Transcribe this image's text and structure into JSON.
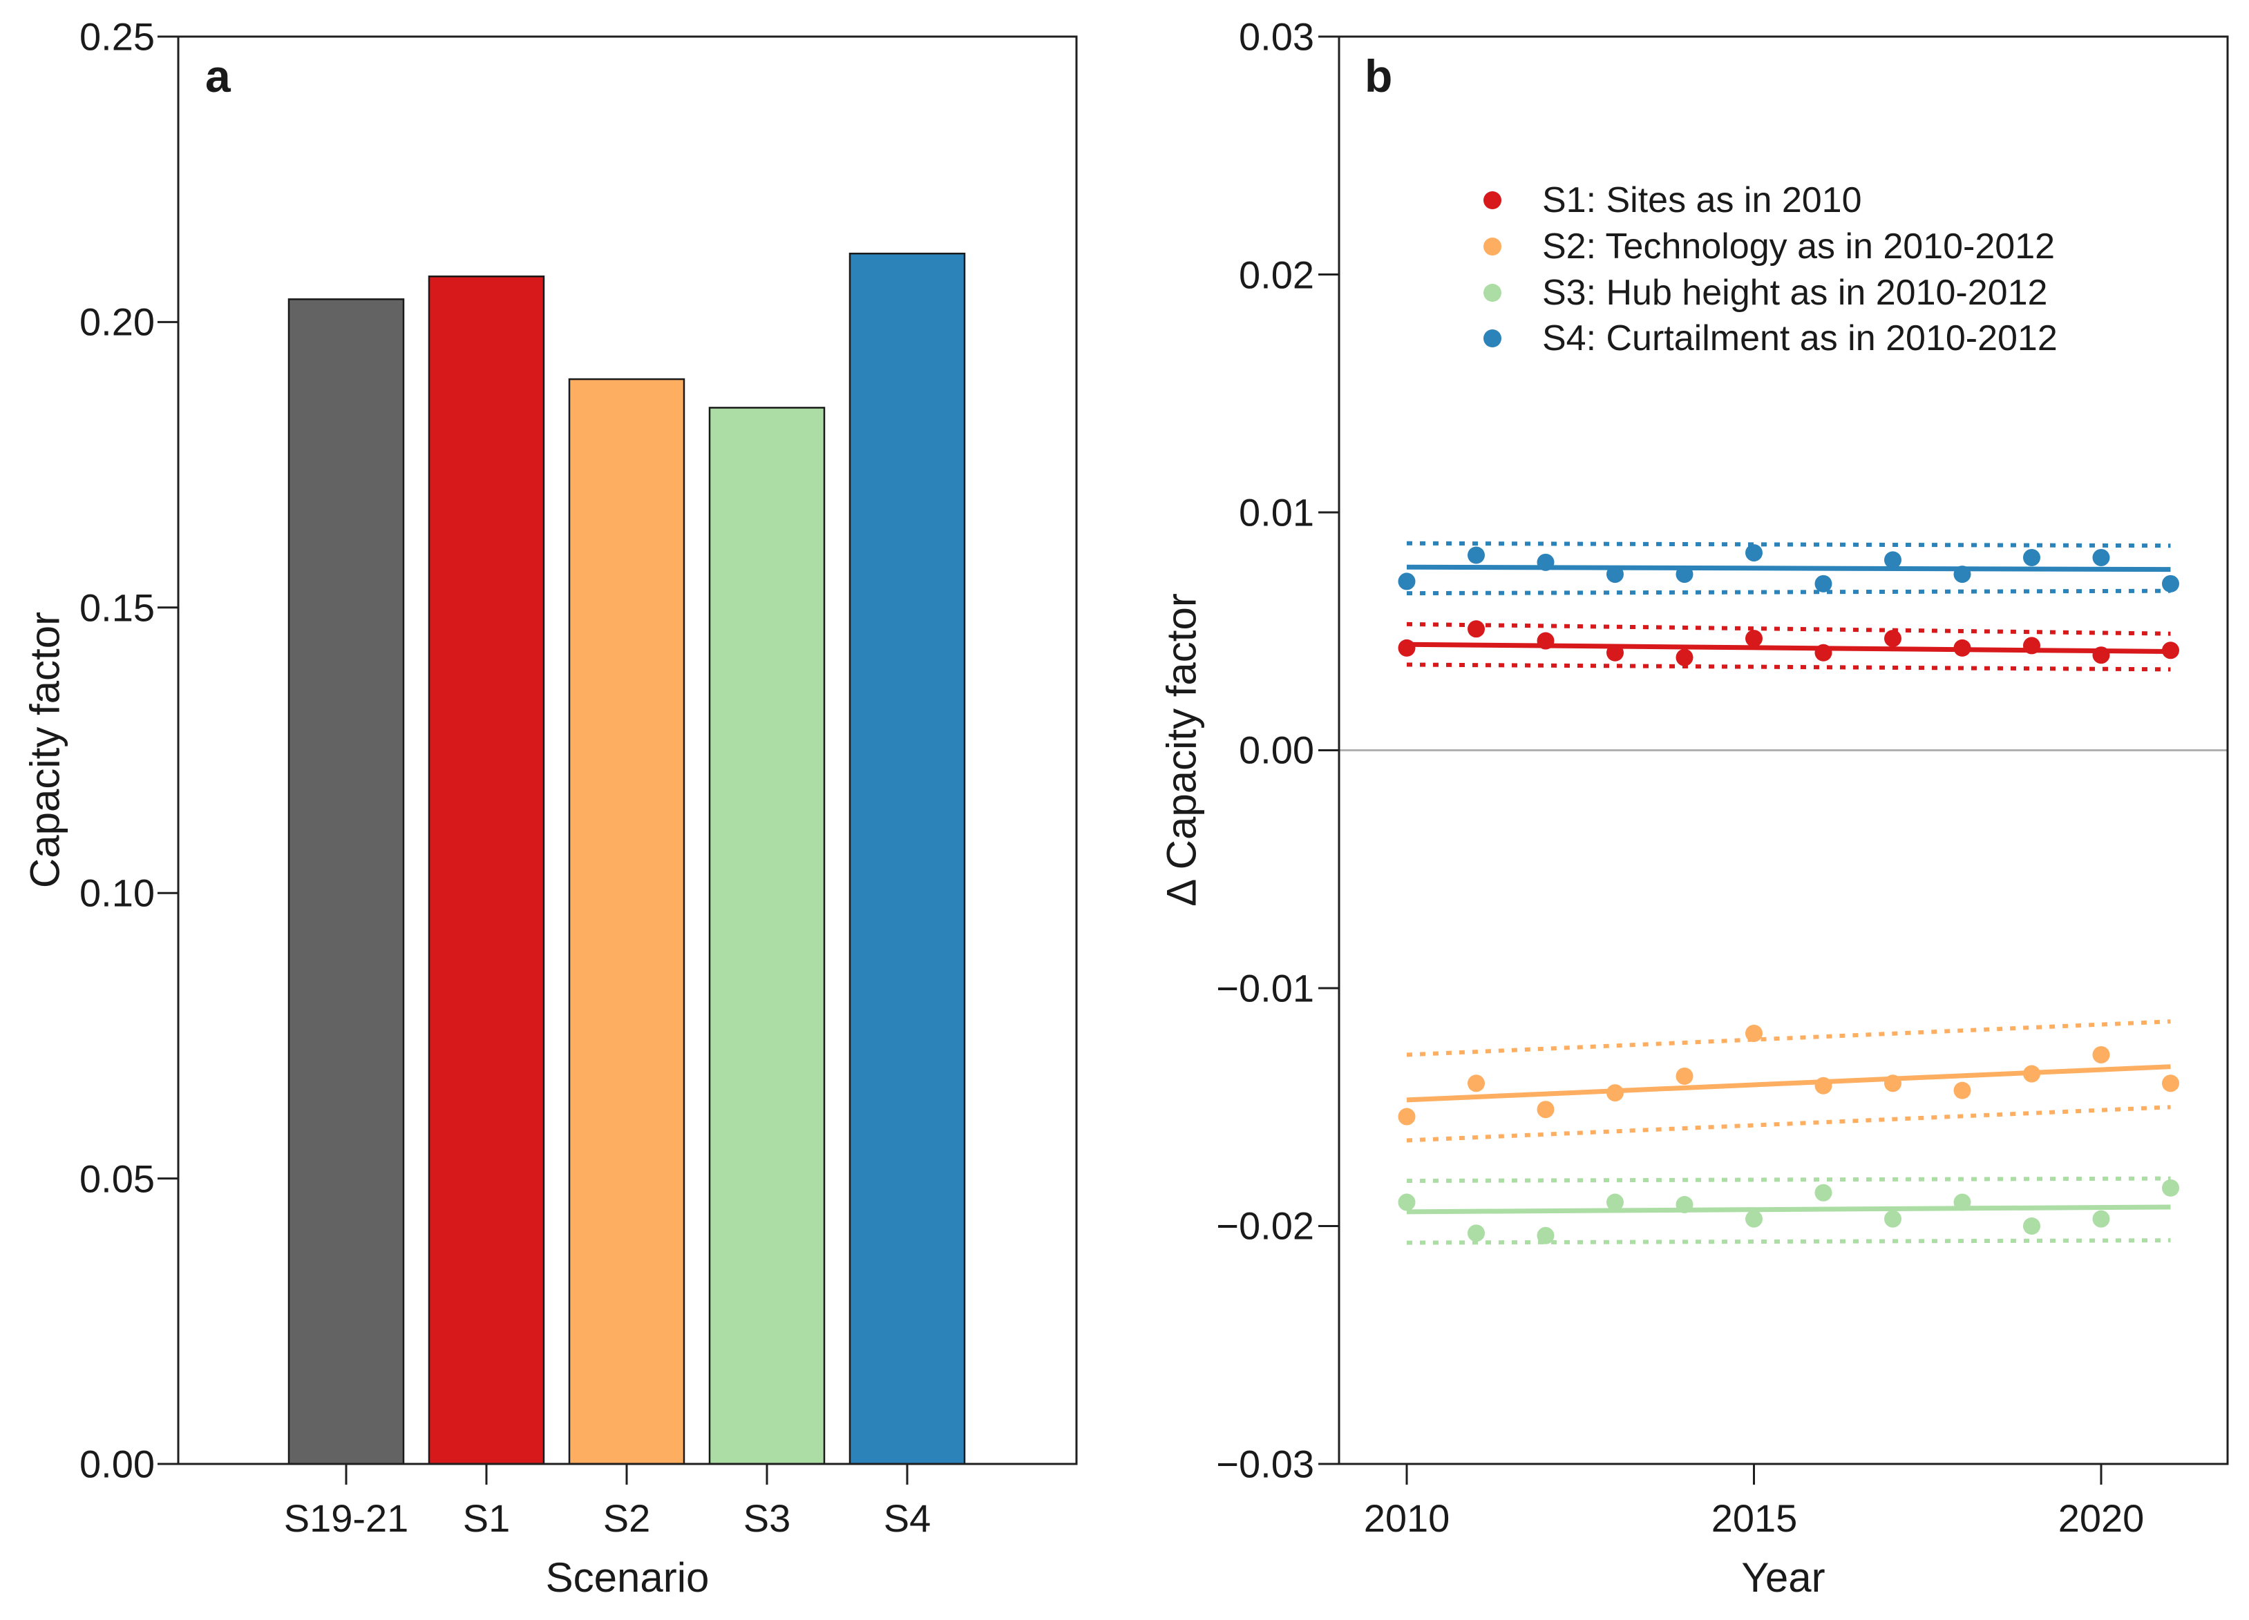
{
  "figure": {
    "panel_a_letter": "a",
    "panel_b_letter": "b",
    "spine_color": "#1f1f1f",
    "text_color": "#1a1a1a"
  },
  "chart_data": [
    {
      "id": "panel-a",
      "type": "bar",
      "panel_letter": "a",
      "xlabel": "Scenario",
      "ylabel": "Capacity factor",
      "categories": [
        "S19-21",
        "S1",
        "S2",
        "S3",
        "S4"
      ],
      "values": [
        0.204,
        0.208,
        0.19,
        0.185,
        0.212
      ],
      "bar_colors": [
        "#636363",
        "#d7191c",
        "#fdae61",
        "#abdda4",
        "#2b83ba"
      ],
      "bar_edge_color": "#1a1a1a",
      "ylim": [
        0,
        0.25
      ],
      "yticks": [
        0.25,
        0.2,
        0.15,
        0.1,
        0.05,
        0.0
      ],
      "ytick_labels": [
        "0.25",
        "0.20",
        "0.15",
        "0.10",
        "0.05",
        "0.00"
      ],
      "grid": false
    },
    {
      "id": "panel-b",
      "type": "scatter",
      "panel_letter": "b",
      "xlabel": "Year",
      "ylabel": "Δ Capacity factor",
      "x": [
        2010,
        2011,
        2012,
        2013,
        2014,
        2015,
        2016,
        2017,
        2018,
        2019,
        2020,
        2021
      ],
      "xticks": [
        2010,
        2015,
        2020
      ],
      "xtick_labels": [
        "2010",
        "2015",
        "2020"
      ],
      "ylim": [
        -0.03,
        0.03
      ],
      "yticks": [
        0.03,
        0.02,
        0.01,
        0.0,
        -0.01,
        -0.02,
        -0.03
      ],
      "ytick_labels": [
        "0.03",
        "0.02",
        "0.01",
        "0.00",
        "−0.01",
        "−0.02",
        "−0.03"
      ],
      "zero_line": true,
      "zero_line_color": "#b0b0b0",
      "grid": false,
      "legend_position": "upper center-left inside",
      "series": [
        {
          "name": "S1: Sites as in 2010",
          "color": "#d7191c",
          "values": [
            0.0043,
            0.0051,
            0.0046,
            0.0041,
            0.0039,
            0.0047,
            0.0041,
            0.0047,
            0.0043,
            0.0044,
            0.004,
            0.0042
          ],
          "trend": [
            0.00445,
            0.00415
          ],
          "band_upper": [
            0.0053,
            0.0049
          ],
          "band_lower": [
            0.0036,
            0.0034
          ]
        },
        {
          "name": "S2: Technology as in 2010-2012",
          "color": "#fdae61",
          "values": [
            -0.0154,
            -0.014,
            -0.0151,
            -0.0144,
            -0.0137,
            -0.0119,
            -0.0141,
            -0.014,
            -0.0143,
            -0.0136,
            -0.0128,
            -0.014
          ],
          "trend": [
            -0.0147,
            -0.0133
          ],
          "band_upper": [
            -0.0128,
            -0.0114
          ],
          "band_lower": [
            -0.0164,
            -0.015
          ]
        },
        {
          "name": "S3: Hub height as in 2010-2012",
          "color": "#abdda4",
          "values": [
            -0.019,
            -0.0203,
            -0.0204,
            -0.019,
            -0.0191,
            -0.0197,
            -0.0186,
            -0.0197,
            -0.019,
            -0.02,
            -0.0197,
            -0.0184
          ],
          "trend": [
            -0.0194,
            -0.0192
          ],
          "band_upper": [
            -0.0181,
            -0.018
          ],
          "band_lower": [
            -0.0207,
            -0.0206
          ]
        },
        {
          "name": "S4: Curtailment as in 2010-2012",
          "color": "#2b83ba",
          "values": [
            0.0071,
            0.0082,
            0.0079,
            0.0074,
            0.0074,
            0.0083,
            0.007,
            0.008,
            0.0074,
            0.0081,
            0.0081,
            0.007
          ],
          "trend": [
            0.0077,
            0.0076
          ],
          "band_upper": [
            0.0087,
            0.0086
          ],
          "band_lower": [
            0.0066,
            0.0067
          ]
        }
      ]
    }
  ]
}
